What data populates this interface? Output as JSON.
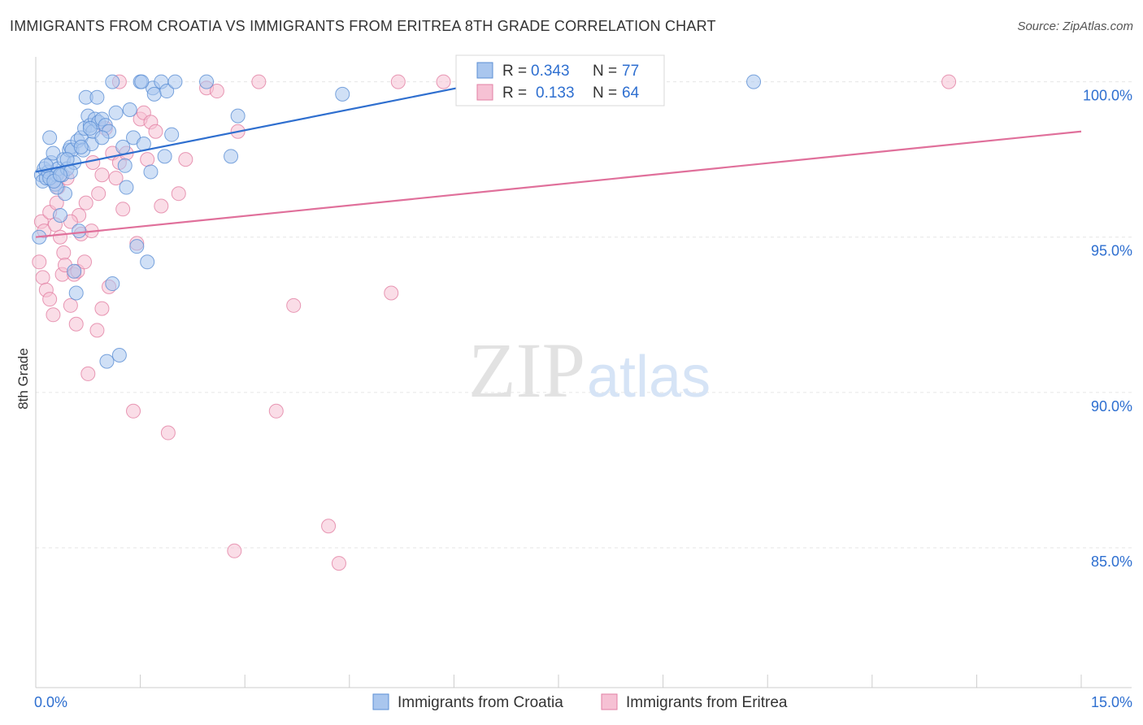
{
  "title": "IMMIGRANTS FROM CROATIA VS IMMIGRANTS FROM ERITREA 8TH GRADE CORRELATION CHART",
  "source": "Source: ZipAtlas.com",
  "watermark": {
    "zip": "ZIP",
    "atlas": "atlas"
  },
  "colors": {
    "croatia": "#5b8fd4",
    "croatia_fill": "#a9c6ee",
    "eritrea": "#e27fa3",
    "eritrea_fill": "#f6c1d4",
    "croatia_line": "#2f6fcf",
    "eritrea_line": "#e0709b",
    "value_text": "#2e6fd0"
  },
  "legend_top": [
    {
      "r_label": "R =",
      "r_value": "0.343",
      "n_label": "N =",
      "n_value": "77"
    },
    {
      "r_label": "R =",
      "r_value": "0.133",
      "n_label": "N =",
      "n_value": "64"
    }
  ],
  "legend_bottom": [
    "Immigrants from Croatia",
    "Immigrants from Eritrea"
  ],
  "chart_data": {
    "type": "scatter",
    "title": "IMMIGRANTS FROM CROATIA VS IMMIGRANTS FROM ERITREA 8TH GRADE CORRELATION CHART",
    "xlabel": "",
    "ylabel": "8th Grade",
    "xlim": [
      0,
      15
    ],
    "ylim": [
      80.5,
      100.8
    ],
    "x_tick_labels": [
      "0.0%",
      "15.0%"
    ],
    "y_tick_values": [
      85,
      90,
      95,
      100
    ],
    "y_tick_labels": [
      "85.0%",
      "90.0%",
      "95.0%",
      "100.0%"
    ],
    "grid": true,
    "legend_position": "top-center",
    "series": [
      {
        "name": "Immigrants from Croatia",
        "stats": {
          "R": 0.343,
          "N": 77
        },
        "trend": {
          "x": [
            0.0,
            6.5
          ],
          "y": [
            97.1,
            100.0
          ]
        },
        "points": [
          [
            0.08,
            97.0
          ],
          [
            0.1,
            96.8
          ],
          [
            0.12,
            97.2
          ],
          [
            0.15,
            96.9
          ],
          [
            0.18,
            97.1
          ],
          [
            0.2,
            98.2
          ],
          [
            0.22,
            97.4
          ],
          [
            0.25,
            97.7
          ],
          [
            0.28,
            96.7
          ],
          [
            0.3,
            97.0
          ],
          [
            0.32,
            97.2
          ],
          [
            0.35,
            95.7
          ],
          [
            0.38,
            97.0
          ],
          [
            0.4,
            97.5
          ],
          [
            0.42,
            96.4
          ],
          [
            0.45,
            97.2
          ],
          [
            0.48,
            97.8
          ],
          [
            0.5,
            97.9
          ],
          [
            0.52,
            97.8
          ],
          [
            0.55,
            97.4
          ],
          [
            0.58,
            93.2
          ],
          [
            0.6,
            98.1
          ],
          [
            0.62,
            95.2
          ],
          [
            0.65,
            98.2
          ],
          [
            0.68,
            97.8
          ],
          [
            0.7,
            98.5
          ],
          [
            0.72,
            99.5
          ],
          [
            0.75,
            98.9
          ],
          [
            0.78,
            98.6
          ],
          [
            0.8,
            98.0
          ],
          [
            0.82,
            98.4
          ],
          [
            0.85,
            98.8
          ],
          [
            0.88,
            99.5
          ],
          [
            0.9,
            98.7
          ],
          [
            0.95,
            98.8
          ],
          [
            1.0,
            98.6
          ],
          [
            1.02,
            91.0
          ],
          [
            1.05,
            98.4
          ],
          [
            1.1,
            93.5
          ],
          [
            1.15,
            99.0
          ],
          [
            1.2,
            91.2
          ],
          [
            1.25,
            97.9
          ],
          [
            1.3,
            96.6
          ],
          [
            1.35,
            99.1
          ],
          [
            1.4,
            98.2
          ],
          [
            1.45,
            94.7
          ],
          [
            1.5,
            100.0
          ],
          [
            1.55,
            98.0
          ],
          [
            1.6,
            94.2
          ],
          [
            1.65,
            97.1
          ],
          [
            1.68,
            99.8
          ],
          [
            1.7,
            99.6
          ],
          [
            1.8,
            100.0
          ],
          [
            1.85,
            97.6
          ],
          [
            1.88,
            99.7
          ],
          [
            1.95,
            98.3
          ],
          [
            2.0,
            100.0
          ],
          [
            2.45,
            100.0
          ],
          [
            2.8,
            97.6
          ],
          [
            2.9,
            98.9
          ],
          [
            4.4,
            99.6
          ],
          [
            10.3,
            100.0
          ],
          [
            1.1,
            100.0
          ],
          [
            1.52,
            100.0
          ],
          [
            0.05,
            95.0
          ],
          [
            0.55,
            93.9
          ],
          [
            0.3,
            96.6
          ],
          [
            0.78,
            98.5
          ],
          [
            0.95,
            98.2
          ],
          [
            0.65,
            97.9
          ],
          [
            0.45,
            97.5
          ],
          [
            0.15,
            97.3
          ],
          [
            0.2,
            96.9
          ],
          [
            0.26,
            96.8
          ],
          [
            1.28,
            97.3
          ],
          [
            0.5,
            97.1
          ],
          [
            0.35,
            97.0
          ]
        ]
      },
      {
        "name": "Immigrants from Eritrea",
        "stats": {
          "R": 0.133,
          "N": 64
        },
        "trend": {
          "x": [
            0.0,
            15.0
          ],
          "y": [
            95.0,
            98.4
          ]
        },
        "points": [
          [
            0.05,
            94.2
          ],
          [
            0.08,
            95.5
          ],
          [
            0.1,
            93.7
          ],
          [
            0.12,
            95.2
          ],
          [
            0.15,
            93.3
          ],
          [
            0.2,
            95.8
          ],
          [
            0.25,
            92.5
          ],
          [
            0.28,
            95.4
          ],
          [
            0.3,
            96.1
          ],
          [
            0.32,
            96.6
          ],
          [
            0.35,
            95.0
          ],
          [
            0.38,
            93.8
          ],
          [
            0.4,
            94.5
          ],
          [
            0.42,
            94.1
          ],
          [
            0.45,
            96.9
          ],
          [
            0.5,
            92.8
          ],
          [
            0.55,
            93.8
          ],
          [
            0.58,
            92.2
          ],
          [
            0.6,
            93.9
          ],
          [
            0.62,
            95.7
          ],
          [
            0.65,
            95.1
          ],
          [
            0.7,
            94.2
          ],
          [
            0.72,
            96.1
          ],
          [
            0.75,
            90.6
          ],
          [
            0.8,
            95.2
          ],
          [
            0.82,
            97.4
          ],
          [
            0.88,
            92.0
          ],
          [
            0.9,
            96.4
          ],
          [
            0.95,
            92.7
          ],
          [
            1.0,
            98.5
          ],
          [
            1.05,
            93.4
          ],
          [
            1.1,
            97.7
          ],
          [
            1.15,
            96.9
          ],
          [
            1.2,
            97.4
          ],
          [
            1.25,
            95.9
          ],
          [
            1.3,
            97.7
          ],
          [
            1.4,
            89.4
          ],
          [
            1.45,
            94.8
          ],
          [
            1.5,
            98.8
          ],
          [
            1.55,
            99.0
          ],
          [
            1.6,
            97.5
          ],
          [
            1.65,
            98.7
          ],
          [
            1.72,
            98.4
          ],
          [
            1.8,
            96.0
          ],
          [
            1.9,
            88.7
          ],
          [
            2.05,
            96.4
          ],
          [
            2.15,
            97.5
          ],
          [
            2.45,
            99.8
          ],
          [
            2.6,
            99.7
          ],
          [
            2.85,
            84.9
          ],
          [
            2.9,
            98.4
          ],
          [
            3.2,
            100.0
          ],
          [
            3.45,
            89.4
          ],
          [
            3.7,
            92.8
          ],
          [
            4.2,
            85.7
          ],
          [
            4.35,
            84.5
          ],
          [
            5.1,
            93.2
          ],
          [
            5.2,
            100.0
          ],
          [
            5.85,
            100.0
          ],
          [
            13.1,
            100.0
          ],
          [
            1.2,
            100.0
          ],
          [
            0.95,
            97.0
          ],
          [
            0.5,
            95.5
          ],
          [
            0.2,
            93.0
          ]
        ]
      }
    ]
  }
}
